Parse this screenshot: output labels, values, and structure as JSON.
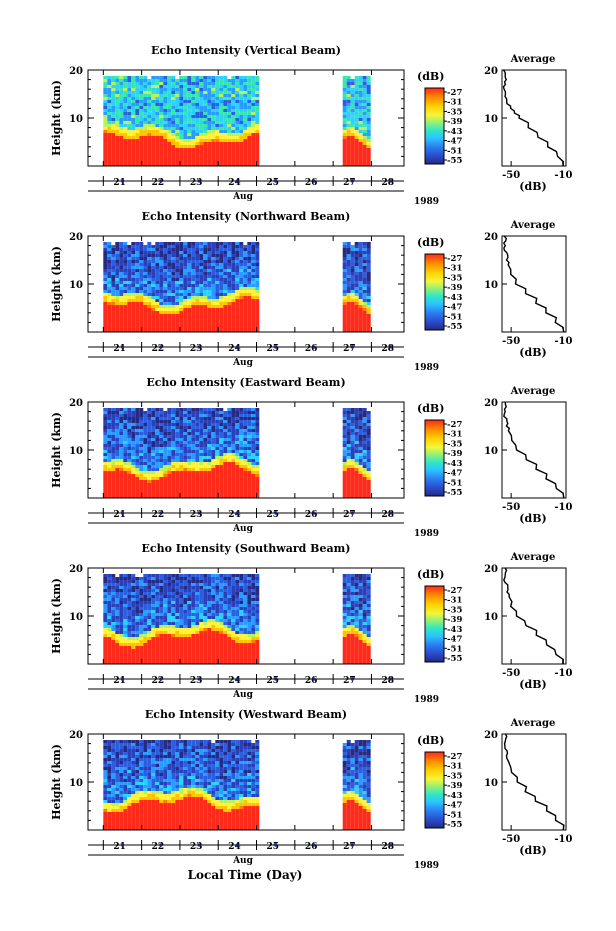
{
  "figure": {
    "xlabel": "Local Time (Day)",
    "month": "Aug",
    "year": "1989",
    "colorbar_unit": "(dB)",
    "avg_title": "Average",
    "avg_xlabel": "(dB)",
    "ylabel": "Height (km)"
  },
  "chart_data": [
    {
      "type": "heatmap",
      "title": "Echo Intensity (Vertical Beam)",
      "xlabel": "Aug",
      "ylabel": "Height (km)",
      "x_ticks": [
        "21",
        "22",
        "23",
        "24",
        "25",
        "26",
        "27",
        "28"
      ],
      "y_ticks": [
        10,
        20
      ],
      "ylim": [
        0,
        20
      ],
      "colorbar": {
        "label": "(dB)",
        "ticks": [
          -27,
          -31,
          -35,
          -39,
          -43,
          -47,
          -51,
          -55
        ]
      },
      "data_gaps_days": [
        [
          25.0,
          27.2
        ]
      ],
      "average_profile": {
        "title": "Average",
        "xlabel": "(dB)",
        "xticks": [
          -50,
          -10
        ],
        "xlim": [
          -57,
          -8
        ],
        "ylim": [
          0,
          20
        ],
        "y_ticks": [
          10,
          20
        ],
        "height_km": [
          0,
          2,
          4,
          6,
          8,
          10,
          11,
          12,
          13,
          14,
          15,
          16,
          17,
          18,
          19,
          20
        ],
        "db": [
          -10,
          -15,
          -22,
          -30,
          -37,
          -44,
          -48,
          -51,
          -53,
          -54,
          -55,
          -56,
          -55,
          -54,
          -55,
          -56
        ]
      }
    },
    {
      "type": "heatmap",
      "title": "Echo Intensity (Northward Beam)",
      "xlabel": "Aug",
      "ylabel": "Height (km)",
      "x_ticks": [
        "21",
        "22",
        "23",
        "24",
        "25",
        "26",
        "27",
        "28"
      ],
      "y_ticks": [
        10,
        20
      ],
      "ylim": [
        0,
        20
      ],
      "colorbar": {
        "label": "(dB)",
        "ticks": [
          -27,
          -31,
          -35,
          -39,
          -43,
          -47,
          -51,
          -55
        ]
      },
      "data_gaps_days": [
        [
          25.0,
          27.2
        ]
      ],
      "average_profile": {
        "title": "Average",
        "xlabel": "(dB)",
        "xticks": [
          -50,
          -10
        ],
        "xlim": [
          -57,
          -8
        ],
        "ylim": [
          0,
          20
        ],
        "y_ticks": [
          10,
          20
        ],
        "height_km": [
          0,
          2,
          4,
          6,
          8,
          10,
          12,
          14,
          15,
          16,
          17,
          18,
          19,
          20
        ],
        "db": [
          -10,
          -16,
          -23,
          -31,
          -39,
          -46,
          -50,
          -52,
          -53,
          -53,
          -55,
          -55,
          -54,
          -55
        ]
      }
    },
    {
      "type": "heatmap",
      "title": "Echo Intensity (Eastward Beam)",
      "xlabel": "Aug",
      "ylabel": "Height (km)",
      "x_ticks": [
        "21",
        "22",
        "23",
        "24",
        "25",
        "26",
        "27",
        "28"
      ],
      "y_ticks": [
        10,
        20
      ],
      "ylim": [
        0,
        20
      ],
      "colorbar": {
        "label": "(dB)",
        "ticks": [
          -27,
          -31,
          -35,
          -39,
          -43,
          -47,
          -51,
          -55
        ]
      },
      "data_gaps_days": [
        [
          25.0,
          27.2
        ]
      ],
      "average_profile": {
        "title": "Average",
        "xlabel": "(dB)",
        "xticks": [
          -50,
          -10
        ],
        "xlim": [
          -57,
          -8
        ],
        "ylim": [
          0,
          20
        ],
        "y_ticks": [
          10,
          20
        ],
        "height_km": [
          0,
          2,
          4,
          6,
          8,
          10,
          12,
          14,
          15,
          16,
          17,
          18,
          19,
          20
        ],
        "db": [
          -10,
          -16,
          -23,
          -31,
          -39,
          -46,
          -50,
          -52,
          -53,
          -53,
          -55,
          -55,
          -54,
          -55
        ]
      }
    },
    {
      "type": "heatmap",
      "title": "Echo Intensity (Southward Beam)",
      "xlabel": "Aug",
      "ylabel": "Height (km)",
      "x_ticks": [
        "21",
        "22",
        "23",
        "24",
        "25",
        "26",
        "27",
        "28"
      ],
      "y_ticks": [
        10,
        20
      ],
      "ylim": [
        0,
        20
      ],
      "colorbar": {
        "label": "(dB)",
        "ticks": [
          -27,
          -31,
          -35,
          -39,
          -43,
          -47,
          -51,
          -55
        ]
      },
      "data_gaps_days": [
        [
          25.0,
          27.2
        ]
      ],
      "average_profile": {
        "title": "Average",
        "xlabel": "(dB)",
        "xticks": [
          -50,
          -10
        ],
        "xlim": [
          -57,
          -8
        ],
        "ylim": [
          0,
          20
        ],
        "y_ticks": [
          10,
          20
        ],
        "height_km": [
          0,
          2,
          4,
          6,
          8,
          10,
          12,
          14,
          15,
          16,
          17,
          18,
          19,
          20
        ],
        "db": [
          -10,
          -16,
          -23,
          -31,
          -39,
          -46,
          -50,
          -52,
          -53,
          -53,
          -55,
          -55,
          -54,
          -55
        ]
      }
    },
    {
      "type": "heatmap",
      "title": "Echo Intensity (Westward Beam)",
      "xlabel": "Aug",
      "ylabel": "Height (km)",
      "x_ticks": [
        "21",
        "22",
        "23",
        "24",
        "25",
        "26",
        "27",
        "28"
      ],
      "y_ticks": [
        10,
        20
      ],
      "ylim": [
        0,
        20
      ],
      "colorbar": {
        "label": "(dB)",
        "ticks": [
          -27,
          -31,
          -35,
          -39,
          -43,
          -47,
          -51,
          -55
        ]
      },
      "data_gaps_days": [
        [
          25.0,
          27.2
        ]
      ],
      "average_profile": {
        "title": "Average",
        "xlabel": "(dB)",
        "xticks": [
          -50,
          -10
        ],
        "xlim": [
          -57,
          -8
        ],
        "ylim": [
          0,
          20
        ],
        "y_ticks": [
          10,
          20
        ],
        "height_km": [
          0,
          2,
          4,
          6,
          8,
          10,
          12,
          14,
          15,
          16,
          17,
          18,
          19,
          20
        ],
        "db": [
          -10,
          -16,
          -23,
          -31,
          -39,
          -46,
          -50,
          -52,
          -53,
          -53,
          -55,
          -55,
          -54,
          -55
        ]
      }
    }
  ],
  "colors": {
    "scale": [
      "#ff2a1a",
      "#ff7a00",
      "#ffc400",
      "#fff23a",
      "#b8f25a",
      "#39e6b0",
      "#2ed0ff",
      "#2a9cff",
      "#2b5fe0",
      "#2b3fb8",
      "#262a80"
    ],
    "tick_marker": "#1a237e"
  }
}
